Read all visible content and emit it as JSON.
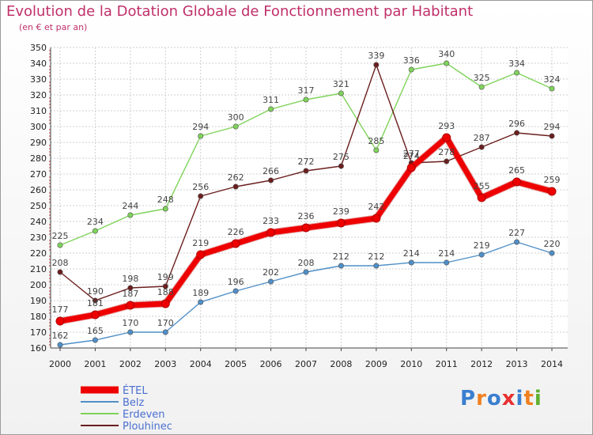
{
  "chart_data": {
    "type": "line",
    "title": "Evolution de la Dotation Globale de Fonctionnement par Habitant",
    "subtitle": "(en € et par an)",
    "x": [
      "2000",
      "2001",
      "2002",
      "2003",
      "2004",
      "2005",
      "2006",
      "2007",
      "2008",
      "2009",
      "2010",
      "2011",
      "2012",
      "2013",
      "2014"
    ],
    "ylim": [
      160,
      350
    ],
    "yticks": [
      160,
      170,
      180,
      190,
      200,
      210,
      220,
      230,
      240,
      250,
      260,
      270,
      280,
      290,
      300,
      310,
      320,
      330,
      340,
      350
    ],
    "grid": true,
    "legend_position": "bottom-left",
    "series": [
      {
        "name": "ÉTEL",
        "color": "#ee0000",
        "values": [
          177,
          181,
          187,
          188,
          219,
          226,
          233,
          236,
          239,
          242,
          274,
          293,
          255,
          265,
          259
        ]
      },
      {
        "name": "Belz",
        "color": "#4f8fc8",
        "values": [
          162,
          165,
          170,
          170,
          189,
          196,
          202,
          208,
          212,
          212,
          214,
          214,
          219,
          227,
          220
        ]
      },
      {
        "name": "Erdeven",
        "color": "#7fd35a",
        "values": [
          225,
          234,
          244,
          248,
          294,
          300,
          311,
          317,
          321,
          285,
          336,
          340,
          325,
          334,
          324
        ]
      },
      {
        "name": "Plouhinec",
        "color": "#6b1e1e",
        "values": [
          208,
          190,
          198,
          199,
          256,
          262,
          266,
          272,
          275,
          339,
          277,
          278,
          287,
          296,
          294
        ]
      }
    ]
  },
  "logo": {
    "text": "Proxiti",
    "letters": [
      "P",
      "r",
      "o",
      "x",
      "i",
      "t",
      "i"
    ],
    "colors": [
      "#3a7fd0",
      "#f08020",
      "#3a7fd0",
      "#e83030",
      "#3a7fd0",
      "#f08020",
      "#60b030"
    ]
  }
}
